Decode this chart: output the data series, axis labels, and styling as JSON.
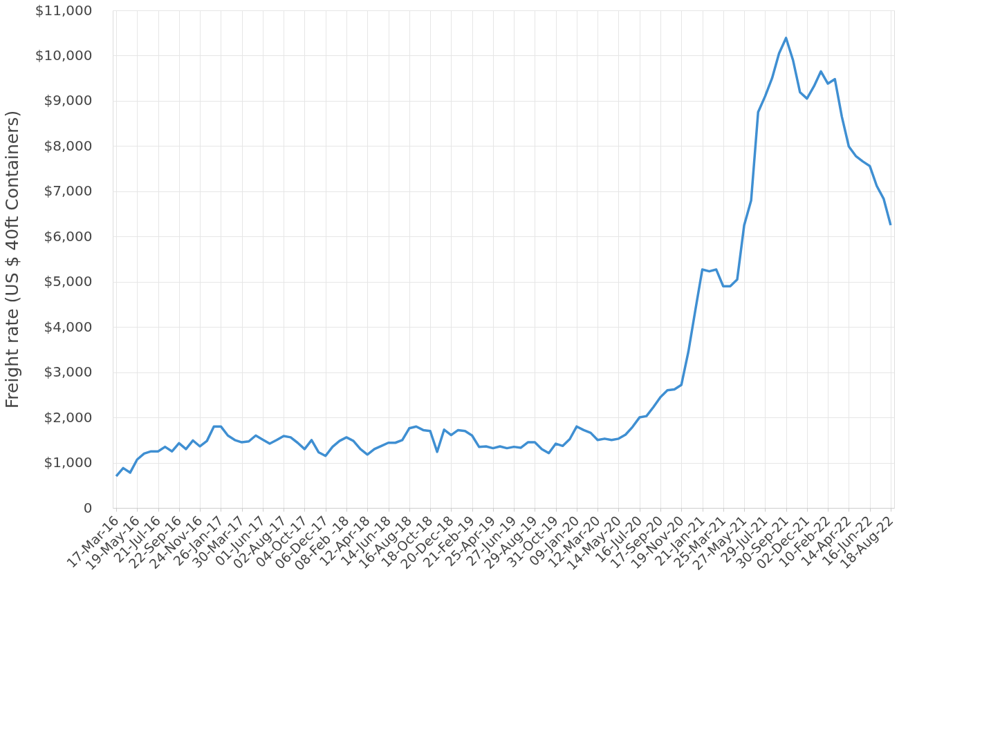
{
  "chart_data": {
    "type": "line",
    "ylabel": "Freight rate (US $ 40ft Containers)",
    "categories": [
      "17-Mar-16",
      null,
      null,
      "19-May-16",
      null,
      null,
      "21-Jul-16",
      null,
      null,
      "22-Sep-16",
      null,
      null,
      "24-Nov-16",
      null,
      null,
      "26-Jan-17",
      null,
      null,
      "30-Mar-17",
      null,
      null,
      "01-Jun-17",
      null,
      null,
      "02-Aug-17",
      null,
      null,
      "04-Oct-17",
      null,
      null,
      "06-Dec-17",
      null,
      null,
      "08-Feb -18",
      null,
      null,
      "12-Apr-18",
      null,
      null,
      "14-Jun-18",
      null,
      null,
      "16-Aug-18",
      null,
      null,
      "18-Oct-18",
      null,
      null,
      "20-Dec-18",
      null,
      null,
      "21-Feb-19",
      null,
      null,
      "25-Apr-19",
      null,
      null,
      "27-Jun-19",
      null,
      null,
      "29-Aug-19",
      null,
      null,
      "31-Oct-19",
      null,
      null,
      "09-Jan-20",
      null,
      null,
      "12-Mar-20",
      null,
      null,
      "14-May-20",
      null,
      null,
      "16-Jul-20",
      null,
      null,
      "17-Sep-20",
      null,
      null,
      "19-Nov-20",
      null,
      null,
      "21-Jan-21",
      null,
      null,
      "25-Mar-21",
      null,
      null,
      "27-May-21",
      null,
      null,
      "29-Jul-21",
      null,
      null,
      "30-Sep-21",
      null,
      null,
      "02-Dec-21",
      null,
      null,
      "10-Feb-22",
      null,
      null,
      "14-Apr-22",
      null,
      null,
      "16-Jun-22",
      null,
      null,
      "18-Aug-22"
    ],
    "series": [
      {
        "color": "#3f8fd2",
        "values": [
          700,
          880,
          780,
          1070,
          1200,
          1250,
          1250,
          1350,
          1250,
          1430,
          1300,
          1490,
          1360,
          1480,
          1800,
          1800,
          1600,
          1500,
          1450,
          1470,
          1600,
          1510,
          1420,
          1500,
          1590,
          1560,
          1440,
          1300,
          1500,
          1230,
          1150,
          1350,
          1480,
          1560,
          1480,
          1300,
          1180,
          1300,
          1370,
          1440,
          1440,
          1500,
          1760,
          1800,
          1720,
          1700,
          1240,
          1730,
          1610,
          1720,
          1700,
          1600,
          1350,
          1360,
          1320,
          1360,
          1320,
          1350,
          1330,
          1450,
          1450,
          1300,
          1210,
          1420,
          1370,
          1520,
          1800,
          1720,
          1660,
          1500,
          1530,
          1500,
          1530,
          1620,
          1790,
          2000,
          2030,
          2230,
          2450,
          2600,
          2620,
          2720,
          3450,
          4370,
          5270,
          5230,
          5270,
          4900,
          4900,
          5050,
          6250,
          6800,
          8750,
          9100,
          9500,
          10050,
          10390,
          9900,
          9190,
          9050,
          9320,
          9650,
          9380,
          9480,
          8650,
          7990,
          7780,
          7660,
          7560,
          7120,
          6830,
          6250
        ]
      }
    ],
    "ylim": [
      0,
      11000
    ],
    "yticks": [
      0,
      {
        "value": 1000,
        "label": "$1,000"
      },
      {
        "value": 2000,
        "label": "$2,000"
      },
      {
        "value": 3000,
        "label": "$3,000"
      },
      {
        "value": 4000,
        "label": "$4,000"
      },
      {
        "value": 5000,
        "label": "$5,000"
      },
      {
        "value": 6000,
        "label": "$6,000"
      },
      {
        "value": 7000,
        "label": "$7,000"
      },
      {
        "value": 8000,
        "label": "$8,000"
      },
      {
        "value": 9000,
        "label": "$9,000"
      },
      {
        "value": 10000,
        "label": "$10,000"
      },
      {
        "value": 11000,
        "label": "$11,000"
      }
    ],
    "grid": true,
    "marker": "none",
    "line_style": "solid"
  }
}
